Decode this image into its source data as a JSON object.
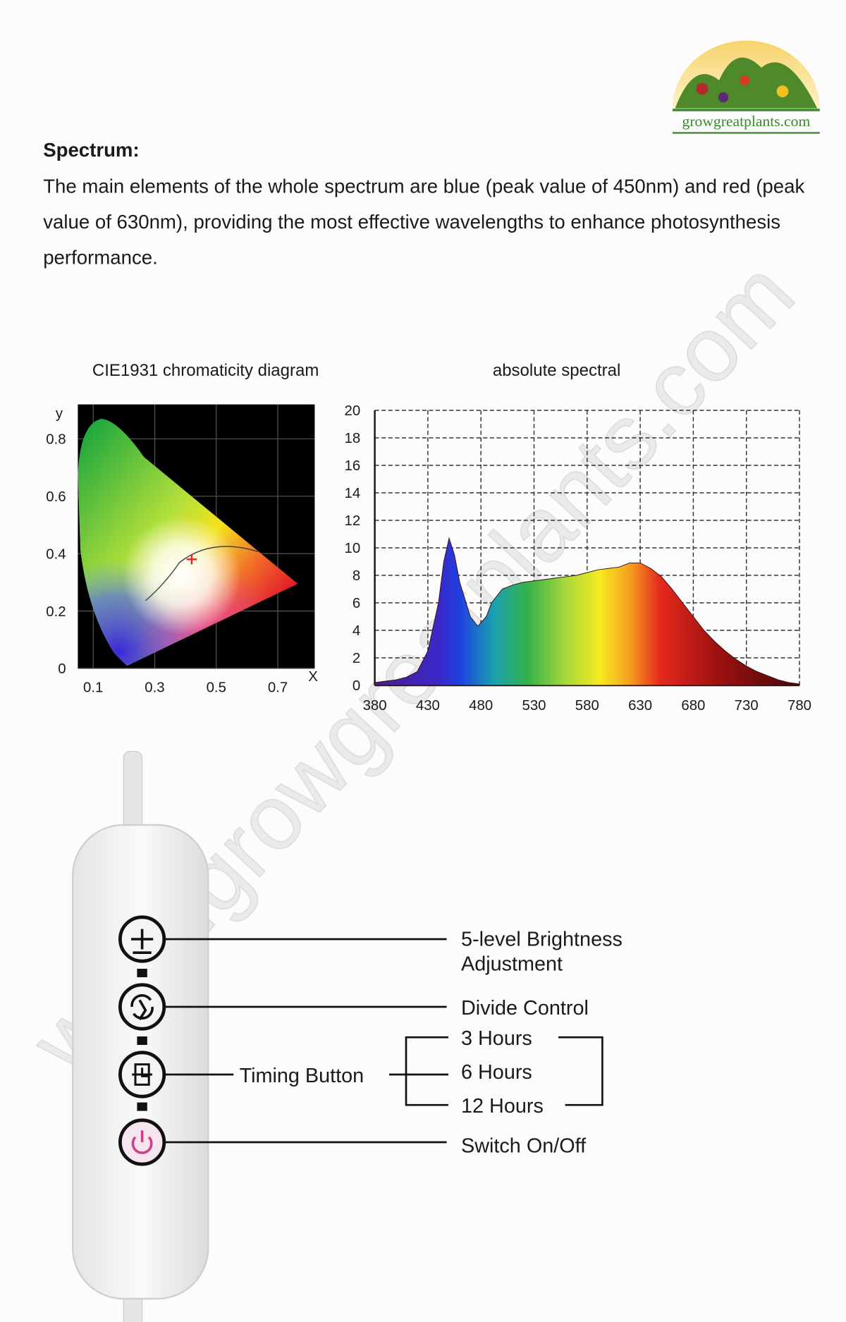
{
  "logo": "growgreatplants.com",
  "heading": "Spectrum:",
  "body": "The main elements of the whole spectrum are blue (peak value of 450nm) and red (peak value of 630nm), providing the most effective wavelengths to enhance photosynthesis performance.",
  "watermark": "www.growgreatplants.com",
  "chart_data": [
    {
      "type": "chromaticity",
      "title": "CIE1931 chromaticity diagram",
      "x_label": "X",
      "y_label": "y",
      "xlim": [
        0.05,
        0.82
      ],
      "ylim": [
        0,
        0.92
      ],
      "xticks": [
        0.1,
        0.3,
        0.5,
        0.7
      ],
      "yticks": [
        0,
        0.2,
        0.4,
        0.6,
        0.8
      ],
      "grid": true,
      "point": {
        "x": 0.42,
        "y": 0.38
      },
      "point_color": "#e0282a"
    },
    {
      "type": "area",
      "title": "absolute spectral",
      "x": [
        380,
        390,
        400,
        410,
        420,
        430,
        440,
        445,
        450,
        455,
        460,
        470,
        477,
        485,
        490,
        500,
        510,
        520,
        530,
        540,
        550,
        560,
        570,
        580,
        590,
        600,
        610,
        620,
        630,
        640,
        650,
        660,
        670,
        680,
        690,
        700,
        710,
        720,
        730,
        740,
        750,
        760,
        770,
        780
      ],
      "values": [
        0.2,
        0.3,
        0.4,
        0.6,
        1.0,
        2.5,
        6.0,
        9.0,
        10.7,
        9.5,
        7.5,
        5.0,
        4.3,
        5.0,
        6.0,
        7.0,
        7.3,
        7.5,
        7.6,
        7.7,
        7.8,
        7.9,
        8.0,
        8.2,
        8.4,
        8.5,
        8.6,
        8.9,
        8.9,
        8.5,
        7.9,
        7.0,
        6.0,
        5.0,
        4.0,
        3.2,
        2.5,
        1.9,
        1.4,
        1.0,
        0.7,
        0.4,
        0.2,
        0.1
      ],
      "xlim": [
        380,
        780
      ],
      "ylim": [
        0,
        20
      ],
      "xticks": [
        380,
        430,
        480,
        530,
        580,
        630,
        680,
        730,
        780
      ],
      "yticks": [
        0,
        2,
        4,
        6,
        8,
        10,
        12,
        14,
        16,
        18,
        20
      ],
      "grid": true
    }
  ],
  "controller": {
    "brightness": [
      "5-level Brightness",
      "Adjustment"
    ],
    "divide": "Divide Control",
    "timing": "Timing Button",
    "timer_options": [
      "3 Hours",
      "6 Hours",
      "12 Hours"
    ],
    "power": "Switch On/Off"
  }
}
